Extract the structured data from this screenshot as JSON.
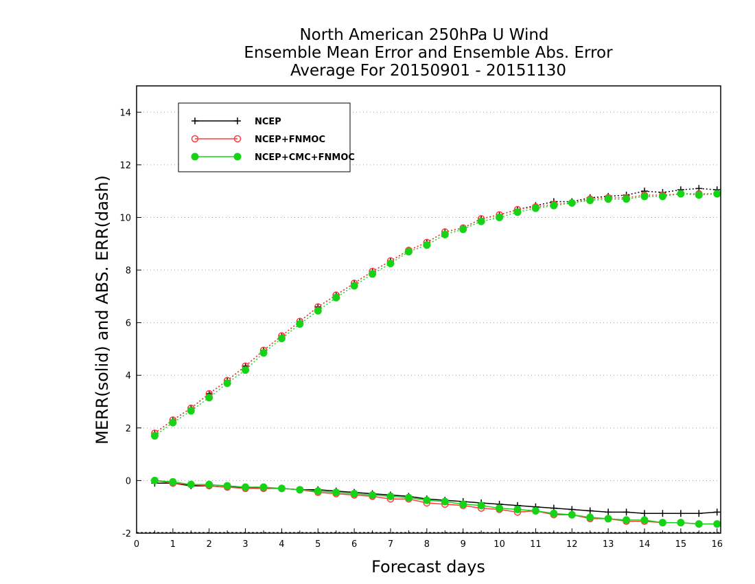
{
  "chart_data": {
    "type": "line",
    "title": [
      "North American 250hPa U Wind",
      "Ensemble Mean Error and Ensemble Abs. Error",
      "Average For 20150901 - 20151130"
    ],
    "xlabel": "Forecast days",
    "ylabel": "MERR(solid) and ABS. ERR(dash)",
    "xlim": [
      0,
      16.1
    ],
    "ylim": [
      -2,
      15
    ],
    "xticks": [
      0,
      1,
      2,
      3,
      4,
      5,
      6,
      7,
      8,
      9,
      10,
      11,
      12,
      13,
      14,
      15,
      16
    ],
    "yticks": [
      -2,
      0,
      2,
      4,
      6,
      8,
      10,
      12,
      14
    ],
    "grid": "horizontal dotted",
    "legend_position": "top-left",
    "x": [
      0.5,
      1.0,
      1.5,
      2.0,
      2.5,
      3.0,
      3.5,
      4.0,
      4.5,
      5.0,
      5.5,
      6.0,
      6.5,
      7.0,
      7.5,
      8.0,
      8.5,
      9.0,
      9.5,
      10.0,
      10.5,
      11.0,
      11.5,
      12.0,
      12.5,
      13.0,
      13.5,
      14.0,
      14.5,
      15.0,
      15.5,
      16.0
    ],
    "series": [
      {
        "name": "NCEP",
        "color": "#000000",
        "marker": "plus",
        "merr": [
          -0.1,
          -0.1,
          -0.2,
          -0.2,
          -0.25,
          -0.25,
          -0.3,
          -0.3,
          -0.35,
          -0.35,
          -0.4,
          -0.45,
          -0.5,
          -0.55,
          -0.6,
          -0.7,
          -0.75,
          -0.8,
          -0.85,
          -0.9,
          -0.95,
          -1.0,
          -1.05,
          -1.1,
          -1.15,
          -1.2,
          -1.2,
          -1.25,
          -1.25,
          -1.25,
          -1.25,
          -1.2
        ],
        "abs_err": [
          1.8,
          2.3,
          2.75,
          3.3,
          3.8,
          4.35,
          4.95,
          5.5,
          6.05,
          6.6,
          7.05,
          7.5,
          7.95,
          8.35,
          8.75,
          9.05,
          9.45,
          9.6,
          9.95,
          10.1,
          10.3,
          10.45,
          10.6,
          10.6,
          10.75,
          10.8,
          10.85,
          11.0,
          10.95,
          11.05,
          11.1,
          11.05
        ]
      },
      {
        "name": "NCEP+FNMOC",
        "color": "#ff3b3b",
        "marker": "open-circle",
        "merr": [
          0.0,
          -0.1,
          -0.15,
          -0.2,
          -0.25,
          -0.3,
          -0.3,
          -0.3,
          -0.35,
          -0.45,
          -0.5,
          -0.55,
          -0.6,
          -0.7,
          -0.7,
          -0.85,
          -0.9,
          -0.95,
          -1.05,
          -1.1,
          -1.2,
          -1.15,
          -1.3,
          -1.3,
          -1.45,
          -1.45,
          -1.55,
          -1.55,
          -1.6,
          -1.6,
          -1.65,
          -1.65
        ],
        "abs_err": [
          1.8,
          2.3,
          2.75,
          3.3,
          3.8,
          4.35,
          4.95,
          5.5,
          6.05,
          6.6,
          7.05,
          7.5,
          7.95,
          8.35,
          8.75,
          9.05,
          9.45,
          9.6,
          9.95,
          10.1,
          10.3,
          10.4,
          10.5,
          10.55,
          10.7,
          10.75,
          10.75,
          10.85,
          10.85,
          10.9,
          10.9,
          10.9
        ]
      },
      {
        "name": "NCEP+CMC+FNMOC",
        "color": "#17d317",
        "marker": "filled-circle",
        "merr": [
          0.0,
          -0.05,
          -0.15,
          -0.15,
          -0.2,
          -0.25,
          -0.25,
          -0.3,
          -0.35,
          -0.4,
          -0.45,
          -0.5,
          -0.55,
          -0.6,
          -0.65,
          -0.75,
          -0.8,
          -0.9,
          -0.95,
          -1.05,
          -1.1,
          -1.15,
          -1.25,
          -1.3,
          -1.4,
          -1.45,
          -1.5,
          -1.5,
          -1.6,
          -1.6,
          -1.65,
          -1.65
        ],
        "abs_err": [
          1.7,
          2.2,
          2.65,
          3.15,
          3.7,
          4.2,
          4.85,
          5.4,
          5.95,
          6.45,
          6.95,
          7.4,
          7.85,
          8.25,
          8.7,
          8.95,
          9.35,
          9.55,
          9.85,
          10.0,
          10.2,
          10.35,
          10.45,
          10.55,
          10.65,
          10.7,
          10.7,
          10.8,
          10.8,
          10.9,
          10.85,
          10.9
        ]
      }
    ]
  }
}
